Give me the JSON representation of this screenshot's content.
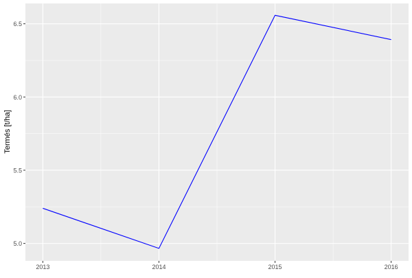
{
  "chart_data": {
    "type": "line",
    "title": "",
    "xlabel": "",
    "ylabel": "Termés [t/ha]",
    "x": [
      2013,
      2014,
      2015,
      2016
    ],
    "values": [
      5.24,
      4.966,
      6.558,
      6.392
    ],
    "xlim": [
      2012.85,
      2016.15
    ],
    "ylim": [
      4.881,
      6.639
    ],
    "x_ticks": [
      "2013",
      "2014",
      "2015",
      "2016"
    ],
    "y_ticks": [
      "5.0",
      "5.5",
      "6.0",
      "6.5"
    ],
    "grid": true,
    "line_color": "#0000ff",
    "panel_background": "#ebebeb"
  }
}
